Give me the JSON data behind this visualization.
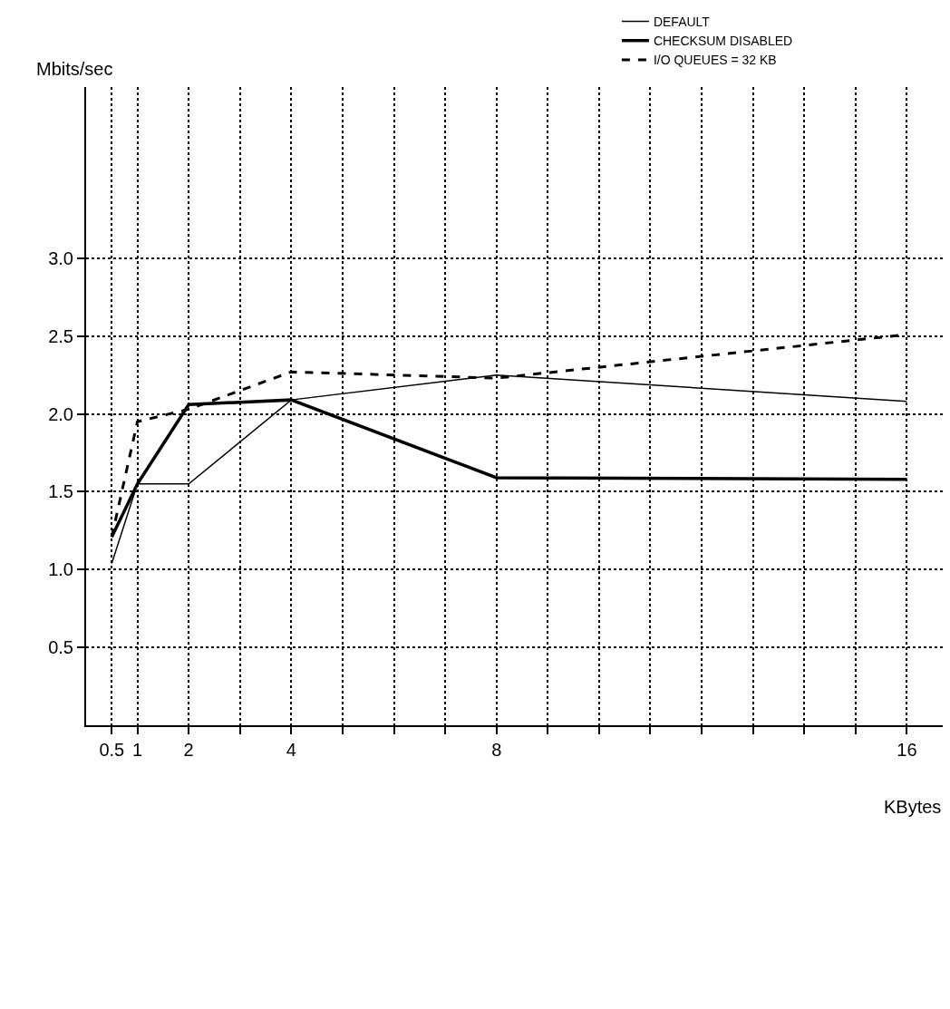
{
  "chart_data": {
    "type": "line",
    "xlabel": "KBytes",
    "ylabel": "Mbits/sec",
    "x": [
      0.5,
      1,
      2,
      4,
      8,
      16
    ],
    "series": [
      {
        "name": "DEFAULT",
        "color": "#000000",
        "line_style": "solid",
        "values": [
          1.04,
          1.55,
          1.55,
          2.09,
          2.25,
          2.08
        ]
      },
      {
        "name": "CHECKSUM DISABLED",
        "color": "#000000",
        "line_style": "solid",
        "values": [
          1.21,
          1.55,
          2.06,
          2.09,
          1.59,
          1.58
        ]
      },
      {
        "name": "I/O QUEUES = 32 KB",
        "color": "#000000",
        "line_style": "dashed",
        "values": [
          1.21,
          1.95,
          2.03,
          2.27,
          2.23,
          2.51
        ]
      }
    ],
    "xlim": [
      0,
      16.7
    ],
    "ylim": [
      0,
      4.1
    ],
    "xticks": [
      0.5,
      1,
      2,
      {
        "value": 3,
        "label": null
      },
      4,
      {
        "value": 5,
        "label": null
      },
      {
        "value": 6,
        "label": null
      },
      {
        "value": 7,
        "label": null
      },
      8,
      {
        "value": 9,
        "label": null
      },
      {
        "value": 10,
        "label": null
      },
      {
        "value": 11,
        "label": null
      },
      {
        "value": 12,
        "label": null
      },
      {
        "value": 13,
        "label": null
      },
      {
        "value": 14,
        "label": null
      },
      {
        "value": 15,
        "label": null
      },
      16
    ],
    "yticks": [
      0.5,
      {
        "value": 1,
        "label": "1.0"
      },
      1.5,
      {
        "value": 2,
        "label": "2.0"
      },
      2.5,
      {
        "value": 3,
        "label": "3.0"
      }
    ],
    "grid": true,
    "legend": "top right"
  }
}
